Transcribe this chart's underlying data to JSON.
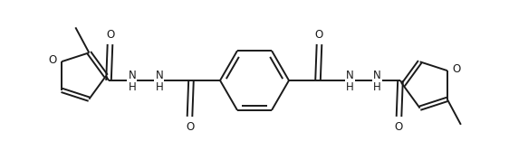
{
  "bg_color": "#ffffff",
  "line_color": "#1a1a1a",
  "lw": 1.4,
  "fs": 8.5,
  "figsize": [
    5.62,
    1.77
  ],
  "dpi": 100,
  "xlim": [
    0,
    56.2
  ],
  "ylim": [
    0,
    17.7
  ]
}
